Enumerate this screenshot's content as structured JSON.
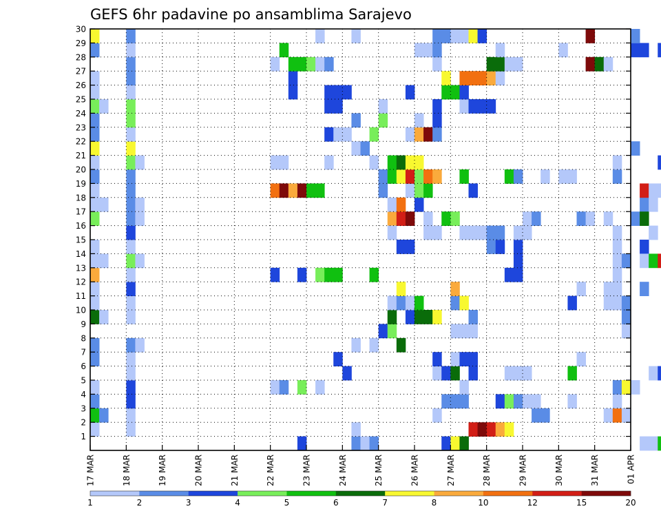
{
  "chart_data": {
    "type": "heatmap",
    "title": "GEFS 6hr padavine po ansamblima Sarajevo",
    "x_tick_labels": [
      "17 MAR",
      "18 MAR",
      "19 MAR",
      "20 MAR",
      "21 MAR",
      "22 MAR",
      "23 MAR",
      "24 MAR",
      "25 MAR",
      "26 MAR",
      "27 MAR",
      "28 MAR",
      "29 MAR",
      "30 MAR",
      "31 MAR",
      "01 APR"
    ],
    "y_tick_labels": [
      "1",
      "2",
      "3",
      "4",
      "5",
      "6",
      "7",
      "8",
      "9",
      "10",
      "11",
      "12",
      "13",
      "14",
      "15",
      "16",
      "17",
      "18",
      "19",
      "20",
      "21",
      "22",
      "23",
      "24",
      "25",
      "26",
      "27",
      "28",
      "29",
      "30"
    ],
    "x_range_days": [
      0,
      15
    ],
    "y_range": [
      0,
      30
    ],
    "steps_per_day": 4,
    "grid": "dotted",
    "colorbar": {
      "labels": [
        "1",
        "2",
        "3",
        "4",
        "5",
        "6",
        "7",
        "8",
        "10",
        "12",
        "15",
        "20"
      ],
      "colors": [
        "#b4c8fa",
        "#5a8ce6",
        "#1e46dc",
        "#78ee5a",
        "#10c010",
        "#0a6c0a",
        "#f8f830",
        "#faaa3c",
        "#f27010",
        "#d21e16",
        "#7e0a0a"
      ]
    },
    "cells": [
      [
        0,
        1,
        0
      ],
      [
        0,
        2,
        4
      ],
      [
        0,
        3,
        1
      ],
      [
        0,
        4,
        0
      ],
      [
        0,
        6,
        1
      ],
      [
        0,
        7,
        1
      ],
      [
        0,
        9,
        5
      ],
      [
        0,
        10,
        0
      ],
      [
        0,
        11,
        0
      ],
      [
        0,
        12,
        7
      ],
      [
        0,
        13,
        0
      ],
      [
        0,
        14,
        0
      ],
      [
        0,
        16,
        3
      ],
      [
        0,
        17,
        0
      ],
      [
        0,
        18,
        0
      ],
      [
        0,
        19,
        1
      ],
      [
        0,
        20,
        0
      ],
      [
        0,
        21,
        6
      ],
      [
        0,
        22,
        1
      ],
      [
        0,
        23,
        1
      ],
      [
        0,
        24,
        3
      ],
      [
        0,
        25,
        0
      ],
      [
        0,
        26,
        0
      ],
      [
        0,
        28,
        1
      ],
      [
        0,
        29,
        6
      ],
      [
        1,
        2,
        1
      ],
      [
        1,
        13,
        0
      ],
      [
        1,
        17,
        0
      ],
      [
        1,
        24,
        0
      ],
      [
        1,
        9,
        0
      ],
      [
        4,
        1,
        0
      ],
      [
        4,
        2,
        0
      ],
      [
        4,
        3,
        2
      ],
      [
        4,
        4,
        2
      ],
      [
        4,
        5,
        0
      ],
      [
        4,
        6,
        0
      ],
      [
        4,
        7,
        1
      ],
      [
        4,
        9,
        0
      ],
      [
        4,
        10,
        0
      ],
      [
        4,
        11,
        2
      ],
      [
        4,
        12,
        0
      ],
      [
        4,
        13,
        3
      ],
      [
        4,
        14,
        0
      ],
      [
        4,
        15,
        2
      ],
      [
        4,
        16,
        1
      ],
      [
        4,
        17,
        1
      ],
      [
        4,
        18,
        1
      ],
      [
        4,
        19,
        1
      ],
      [
        4,
        20,
        3
      ],
      [
        4,
        21,
        6
      ],
      [
        4,
        22,
        0
      ],
      [
        4,
        23,
        3
      ],
      [
        4,
        24,
        3
      ],
      [
        4,
        25,
        0
      ],
      [
        4,
        26,
        1
      ],
      [
        4,
        27,
        1
      ],
      [
        4,
        28,
        0
      ],
      [
        4,
        29,
        1
      ],
      [
        5,
        7,
        0
      ],
      [
        5,
        13,
        0
      ],
      [
        5,
        16,
        0
      ],
      [
        5,
        17,
        0
      ],
      [
        5,
        20,
        0
      ],
      [
        20,
        4,
        0
      ],
      [
        20,
        12,
        2
      ],
      [
        20,
        18,
        8
      ],
      [
        20,
        20,
        0
      ],
      [
        20,
        27,
        0
      ],
      [
        21,
        4,
        1
      ],
      [
        21,
        18,
        10
      ],
      [
        21,
        20,
        0
      ],
      [
        21,
        28,
        4
      ],
      [
        22,
        18,
        7
      ],
      [
        22,
        25,
        2
      ],
      [
        22,
        26,
        2
      ],
      [
        22,
        27,
        4
      ],
      [
        23,
        0,
        2
      ],
      [
        23,
        4,
        3
      ],
      [
        23,
        12,
        2
      ],
      [
        23,
        18,
        10
      ],
      [
        23,
        27,
        4
      ],
      [
        24,
        18,
        4
      ],
      [
        24,
        27,
        3
      ],
      [
        25,
        4,
        0
      ],
      [
        25,
        12,
        3
      ],
      [
        25,
        18,
        4
      ],
      [
        25,
        27,
        0
      ],
      [
        25,
        29,
        0
      ],
      [
        26,
        12,
        4
      ],
      [
        26,
        20,
        0
      ],
      [
        26,
        27,
        1
      ],
      [
        26,
        22,
        2
      ],
      [
        26,
        24,
        2
      ],
      [
        26,
        25,
        2
      ],
      [
        27,
        6,
        2
      ],
      [
        27,
        12,
        4
      ],
      [
        27,
        24,
        2
      ],
      [
        27,
        25,
        2
      ],
      [
        27,
        22,
        0
      ],
      [
        28,
        5,
        2
      ],
      [
        28,
        22,
        0
      ],
      [
        28,
        25,
        2
      ],
      [
        29,
        0,
        1
      ],
      [
        29,
        23,
        1
      ],
      [
        29,
        1,
        0
      ],
      [
        29,
        7,
        0
      ],
      [
        29,
        21,
        0
      ],
      [
        29,
        29,
        0
      ],
      [
        30,
        0,
        0
      ],
      [
        30,
        21,
        1
      ],
      [
        31,
        0,
        1
      ],
      [
        31,
        7,
        0
      ],
      [
        31,
        12,
        4
      ],
      [
        31,
        20,
        0
      ],
      [
        31,
        22,
        3
      ],
      [
        32,
        8,
        2
      ],
      [
        32,
        18,
        1
      ],
      [
        32,
        23,
        3
      ],
      [
        32,
        19,
        1
      ],
      [
        32,
        24,
        0
      ],
      [
        33,
        8,
        3
      ],
      [
        33,
        9,
        5
      ],
      [
        33,
        16,
        7
      ],
      [
        33,
        19,
        4
      ],
      [
        33,
        10,
        0
      ],
      [
        33,
        15,
        0
      ],
      [
        33,
        20,
        4
      ],
      [
        33,
        17,
        0
      ],
      [
        34,
        7,
        5
      ],
      [
        34,
        10,
        1
      ],
      [
        34,
        11,
        6
      ],
      [
        34,
        14,
        2
      ],
      [
        34,
        16,
        9
      ],
      [
        34,
        17,
        8
      ],
      [
        34,
        19,
        6
      ],
      [
        34,
        20,
        5
      ],
      [
        35,
        9,
        2
      ],
      [
        35,
        10,
        0
      ],
      [
        35,
        14,
        2
      ],
      [
        35,
        16,
        10
      ],
      [
        35,
        18,
        0
      ],
      [
        35,
        19,
        9
      ],
      [
        35,
        20,
        6
      ],
      [
        35,
        25,
        2
      ],
      [
        35,
        22,
        0
      ],
      [
        36,
        9,
        5
      ],
      [
        36,
        10,
        4
      ],
      [
        36,
        17,
        2
      ],
      [
        36,
        18,
        3
      ],
      [
        36,
        19,
        3
      ],
      [
        36,
        20,
        6
      ],
      [
        36,
        22,
        7
      ],
      [
        36,
        23,
        0
      ],
      [
        36,
        28,
        0
      ],
      [
        37,
        9,
        5
      ],
      [
        37,
        15,
        0
      ],
      [
        37,
        16,
        0
      ],
      [
        37,
        18,
        4
      ],
      [
        37,
        19,
        8
      ],
      [
        37,
        22,
        10
      ],
      [
        37,
        28,
        0
      ],
      [
        38,
        2,
        0
      ],
      [
        38,
        5,
        0
      ],
      [
        38,
        6,
        2
      ],
      [
        38,
        9,
        6
      ],
      [
        38,
        15,
        0
      ],
      [
        38,
        19,
        7
      ],
      [
        38,
        22,
        1
      ],
      [
        38,
        23,
        2
      ],
      [
        38,
        24,
        2
      ],
      [
        38,
        27,
        0
      ],
      [
        38,
        28,
        1
      ],
      [
        38,
        29,
        1
      ],
      [
        39,
        0,
        2
      ],
      [
        39,
        3,
        1
      ],
      [
        39,
        5,
        2
      ],
      [
        39,
        16,
        4
      ],
      [
        39,
        25,
        4
      ],
      [
        39,
        26,
        6
      ],
      [
        39,
        29,
        1
      ],
      [
        40,
        0,
        6
      ],
      [
        40,
        3,
        1
      ],
      [
        40,
        5,
        5
      ],
      [
        40,
        6,
        0
      ],
      [
        40,
        8,
        0
      ],
      [
        40,
        10,
        1
      ],
      [
        40,
        11,
        7
      ],
      [
        40,
        16,
        3
      ],
      [
        40,
        25,
        4
      ],
      [
        40,
        29,
        0
      ],
      [
        41,
        0,
        5
      ],
      [
        41,
        3,
        1
      ],
      [
        41,
        4,
        0
      ],
      [
        41,
        6,
        2
      ],
      [
        41,
        8,
        0
      ],
      [
        41,
        10,
        6
      ],
      [
        41,
        15,
        0
      ],
      [
        41,
        19,
        4
      ],
      [
        41,
        24,
        0
      ],
      [
        41,
        25,
        2
      ],
      [
        41,
        26,
        8
      ],
      [
        41,
        29,
        0
      ],
      [
        42,
        1,
        9
      ],
      [
        42,
        5,
        2
      ],
      [
        42,
        6,
        2
      ],
      [
        42,
        8,
        0
      ],
      [
        42,
        9,
        1
      ],
      [
        42,
        15,
        0
      ],
      [
        42,
        18,
        2
      ],
      [
        42,
        24,
        2
      ],
      [
        42,
        26,
        8
      ],
      [
        42,
        29,
        6
      ],
      [
        43,
        1,
        10
      ],
      [
        43,
        15,
        0
      ],
      [
        43,
        24,
        2
      ],
      [
        43,
        26,
        8
      ],
      [
        43,
        29,
        2
      ],
      [
        44,
        1,
        9
      ],
      [
        44,
        14,
        1
      ],
      [
        44,
        15,
        1
      ],
      [
        44,
        24,
        2
      ],
      [
        44,
        26,
        7
      ],
      [
        44,
        27,
        5
      ],
      [
        45,
        1,
        7
      ],
      [
        45,
        3,
        2
      ],
      [
        45,
        14,
        2
      ],
      [
        45,
        15,
        1
      ],
      [
        45,
        26,
        0
      ],
      [
        45,
        27,
        5
      ],
      [
        45,
        28,
        0
      ],
      [
        46,
        1,
        6
      ],
      [
        46,
        3,
        3
      ],
      [
        46,
        12,
        2
      ],
      [
        46,
        5,
        0
      ],
      [
        46,
        19,
        4
      ],
      [
        46,
        27,
        0
      ],
      [
        47,
        3,
        1
      ],
      [
        47,
        5,
        0
      ],
      [
        47,
        12,
        2
      ],
      [
        47,
        13,
        2
      ],
      [
        47,
        14,
        2
      ],
      [
        47,
        15,
        0
      ],
      [
        47,
        19,
        1
      ],
      [
        47,
        27,
        0
      ],
      [
        48,
        3,
        0
      ],
      [
        48,
        15,
        0
      ],
      [
        48,
        16,
        0
      ],
      [
        48,
        5,
        0
      ],
      [
        49,
        2,
        1
      ],
      [
        49,
        3,
        0
      ],
      [
        49,
        16,
        1
      ],
      [
        50,
        2,
        1
      ],
      [
        50,
        19,
        0
      ],
      [
        52,
        19,
        0
      ],
      [
        52,
        28,
        0
      ],
      [
        53,
        3,
        0
      ],
      [
        53,
        5,
        4
      ],
      [
        53,
        10,
        2
      ],
      [
        53,
        19,
        0
      ],
      [
        54,
        6,
        0
      ],
      [
        54,
        11,
        0
      ],
      [
        54,
        16,
        1
      ],
      [
        55,
        16,
        0
      ],
      [
        55,
        29,
        10
      ],
      [
        55,
        27,
        10
      ],
      [
        56,
        27,
        5
      ],
      [
        57,
        2,
        0
      ],
      [
        57,
        10,
        0
      ],
      [
        57,
        11,
        0
      ],
      [
        57,
        16,
        0
      ],
      [
        57,
        27,
        0
      ],
      [
        58,
        2,
        8
      ],
      [
        58,
        3,
        0
      ],
      [
        58,
        4,
        1
      ],
      [
        58,
        10,
        0
      ],
      [
        58,
        11,
        0
      ],
      [
        58,
        12,
        0
      ],
      [
        58,
        13,
        0
      ],
      [
        58,
        14,
        0
      ],
      [
        58,
        15,
        0
      ],
      [
        58,
        19,
        1
      ],
      [
        58,
        20,
        0
      ],
      [
        59,
        2,
        0
      ],
      [
        59,
        4,
        6
      ],
      [
        59,
        8,
        0
      ],
      [
        59,
        9,
        1
      ],
      [
        59,
        13,
        1
      ],
      [
        59,
        10,
        1
      ],
      [
        60,
        4,
        0
      ],
      [
        60,
        16,
        1
      ],
      [
        60,
        21,
        1
      ],
      [
        60,
        28,
        2
      ],
      [
        60,
        29,
        1
      ],
      [
        61,
        0,
        0
      ],
      [
        61,
        14,
        2
      ],
      [
        61,
        17,
        1
      ],
      [
        61,
        11,
        1
      ],
      [
        61,
        13,
        0
      ],
      [
        61,
        16,
        5
      ],
      [
        61,
        18,
        9
      ],
      [
        61,
        28,
        2
      ],
      [
        62,
        0,
        0
      ],
      [
        62,
        5,
        0
      ],
      [
        62,
        13,
        4
      ],
      [
        62,
        15,
        0
      ],
      [
        62,
        17,
        0
      ],
      [
        62,
        18,
        0
      ],
      [
        63,
        0,
        4
      ],
      [
        63,
        5,
        2
      ],
      [
        63,
        13,
        9
      ],
      [
        63,
        18,
        0
      ],
      [
        63,
        20,
        2
      ],
      [
        63,
        28,
        2
      ]
    ]
  }
}
